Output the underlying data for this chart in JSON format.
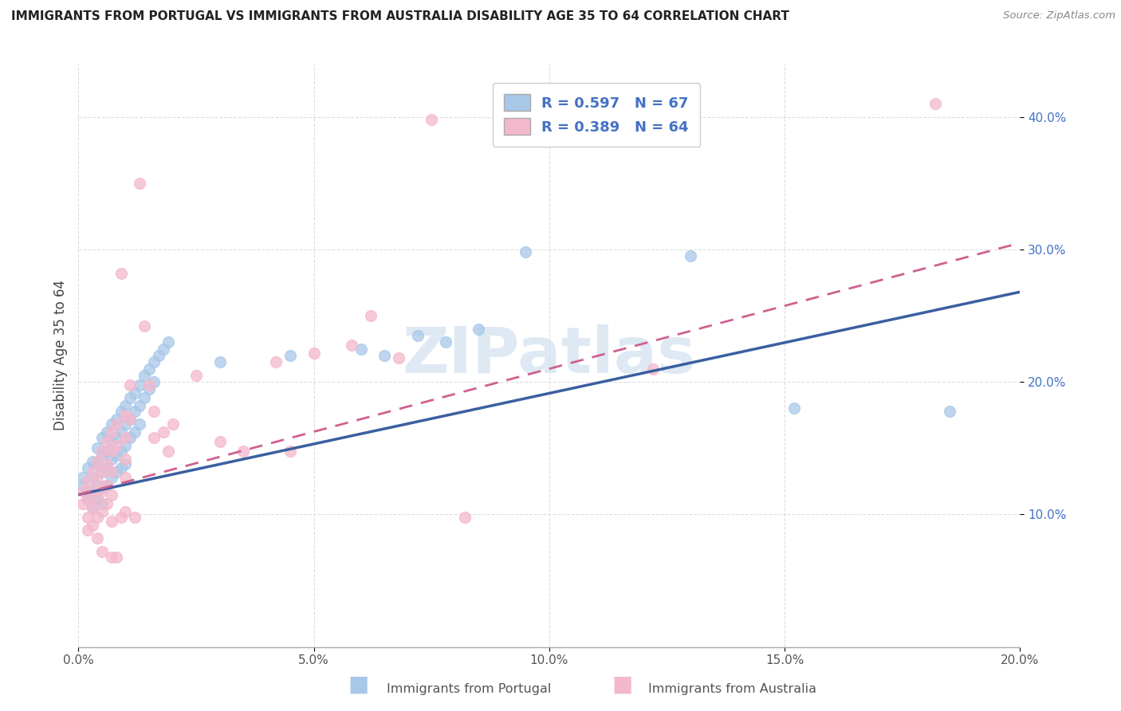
{
  "title": "IMMIGRANTS FROM PORTUGAL VS IMMIGRANTS FROM AUSTRALIA DISABILITY AGE 35 TO 64 CORRELATION CHART",
  "source": "Source: ZipAtlas.com",
  "ylabel": "Disability Age 35 to 64",
  "xlim": [
    0.0,
    0.2
  ],
  "ylim": [
    0.0,
    0.44
  ],
  "xticks": [
    0.0,
    0.05,
    0.1,
    0.15,
    0.2
  ],
  "yticks": [
    0.1,
    0.2,
    0.3,
    0.4
  ],
  "ytick_labels": [
    "10.0%",
    "20.0%",
    "30.0%",
    "40.0%"
  ],
  "xtick_labels": [
    "0.0%",
    "5.0%",
    "10.0%",
    "15.0%",
    "20.0%"
  ],
  "portugal_color": "#a8c8e8",
  "australia_color": "#f4b8cc",
  "portugal_R": 0.597,
  "portugal_N": 67,
  "australia_R": 0.389,
  "australia_N": 64,
  "legend_color": "#4472c4",
  "portugal_line_color": "#3a5fa0",
  "australia_line_color": "#d06090",
  "background_color": "#ffffff",
  "grid_color": "#dddddd",
  "watermark_color": "#d0e0f0",
  "title_color": "#222222",
  "source_color": "#888888",
  "ylabel_color": "#444444",
  "tick_color": "#4472c4",
  "portugal_scatter": [
    [
      0.001,
      0.128
    ],
    [
      0.001,
      0.122
    ],
    [
      0.002,
      0.135
    ],
    [
      0.002,
      0.118
    ],
    [
      0.002,
      0.112
    ],
    [
      0.003,
      0.14
    ],
    [
      0.003,
      0.128
    ],
    [
      0.003,
      0.115
    ],
    [
      0.003,
      0.105
    ],
    [
      0.004,
      0.15
    ],
    [
      0.004,
      0.138
    ],
    [
      0.004,
      0.122
    ],
    [
      0.004,
      0.112
    ],
    [
      0.005,
      0.158
    ],
    [
      0.005,
      0.145
    ],
    [
      0.005,
      0.132
    ],
    [
      0.005,
      0.12
    ],
    [
      0.005,
      0.108
    ],
    [
      0.006,
      0.162
    ],
    [
      0.006,
      0.148
    ],
    [
      0.006,
      0.135
    ],
    [
      0.006,
      0.122
    ],
    [
      0.007,
      0.168
    ],
    [
      0.007,
      0.155
    ],
    [
      0.007,
      0.142
    ],
    [
      0.007,
      0.128
    ],
    [
      0.008,
      0.172
    ],
    [
      0.008,
      0.158
    ],
    [
      0.008,
      0.145
    ],
    [
      0.008,
      0.132
    ],
    [
      0.009,
      0.178
    ],
    [
      0.009,
      0.162
    ],
    [
      0.009,
      0.148
    ],
    [
      0.009,
      0.135
    ],
    [
      0.01,
      0.182
    ],
    [
      0.01,
      0.168
    ],
    [
      0.01,
      0.152
    ],
    [
      0.01,
      0.138
    ],
    [
      0.011,
      0.188
    ],
    [
      0.011,
      0.172
    ],
    [
      0.011,
      0.158
    ],
    [
      0.012,
      0.192
    ],
    [
      0.012,
      0.178
    ],
    [
      0.012,
      0.162
    ],
    [
      0.013,
      0.198
    ],
    [
      0.013,
      0.182
    ],
    [
      0.013,
      0.168
    ],
    [
      0.014,
      0.205
    ],
    [
      0.014,
      0.188
    ],
    [
      0.015,
      0.21
    ],
    [
      0.015,
      0.195
    ],
    [
      0.016,
      0.215
    ],
    [
      0.016,
      0.2
    ],
    [
      0.017,
      0.22
    ],
    [
      0.018,
      0.225
    ],
    [
      0.019,
      0.23
    ],
    [
      0.03,
      0.215
    ],
    [
      0.045,
      0.22
    ],
    [
      0.06,
      0.225
    ],
    [
      0.065,
      0.22
    ],
    [
      0.072,
      0.235
    ],
    [
      0.078,
      0.23
    ],
    [
      0.085,
      0.24
    ],
    [
      0.095,
      0.298
    ],
    [
      0.13,
      0.295
    ],
    [
      0.152,
      0.18
    ],
    [
      0.185,
      0.178
    ]
  ],
  "australia_scatter": [
    [
      0.001,
      0.118
    ],
    [
      0.001,
      0.108
    ],
    [
      0.002,
      0.125
    ],
    [
      0.002,
      0.112
    ],
    [
      0.002,
      0.098
    ],
    [
      0.002,
      0.088
    ],
    [
      0.003,
      0.132
    ],
    [
      0.003,
      0.118
    ],
    [
      0.003,
      0.105
    ],
    [
      0.003,
      0.092
    ],
    [
      0.004,
      0.14
    ],
    [
      0.004,
      0.125
    ],
    [
      0.004,
      0.112
    ],
    [
      0.004,
      0.098
    ],
    [
      0.004,
      0.082
    ],
    [
      0.005,
      0.148
    ],
    [
      0.005,
      0.132
    ],
    [
      0.005,
      0.118
    ],
    [
      0.005,
      0.102
    ],
    [
      0.005,
      0.072
    ],
    [
      0.006,
      0.155
    ],
    [
      0.006,
      0.138
    ],
    [
      0.006,
      0.122
    ],
    [
      0.006,
      0.108
    ],
    [
      0.007,
      0.162
    ],
    [
      0.007,
      0.148
    ],
    [
      0.007,
      0.132
    ],
    [
      0.007,
      0.115
    ],
    [
      0.007,
      0.095
    ],
    [
      0.007,
      0.068
    ],
    [
      0.008,
      0.168
    ],
    [
      0.008,
      0.152
    ],
    [
      0.008,
      0.068
    ],
    [
      0.009,
      0.282
    ],
    [
      0.009,
      0.098
    ],
    [
      0.01,
      0.175
    ],
    [
      0.01,
      0.158
    ],
    [
      0.01,
      0.142
    ],
    [
      0.01,
      0.128
    ],
    [
      0.01,
      0.102
    ],
    [
      0.011,
      0.198
    ],
    [
      0.011,
      0.172
    ],
    [
      0.012,
      0.098
    ],
    [
      0.013,
      0.35
    ],
    [
      0.014,
      0.242
    ],
    [
      0.015,
      0.198
    ],
    [
      0.016,
      0.178
    ],
    [
      0.016,
      0.158
    ],
    [
      0.018,
      0.162
    ],
    [
      0.019,
      0.148
    ],
    [
      0.02,
      0.168
    ],
    [
      0.025,
      0.205
    ],
    [
      0.03,
      0.155
    ],
    [
      0.035,
      0.148
    ],
    [
      0.042,
      0.215
    ],
    [
      0.045,
      0.148
    ],
    [
      0.05,
      0.222
    ],
    [
      0.058,
      0.228
    ],
    [
      0.062,
      0.25
    ],
    [
      0.068,
      0.218
    ],
    [
      0.075,
      0.398
    ],
    [
      0.082,
      0.098
    ],
    [
      0.122,
      0.21
    ],
    [
      0.182,
      0.41
    ]
  ],
  "portugal_line_x0": 0.0,
  "portugal_line_y0": 0.115,
  "portugal_line_x1": 0.2,
  "portugal_line_y1": 0.268,
  "australia_line_x0": 0.0,
  "australia_line_y0": 0.115,
  "australia_line_x1": 0.2,
  "australia_line_y1": 0.305
}
